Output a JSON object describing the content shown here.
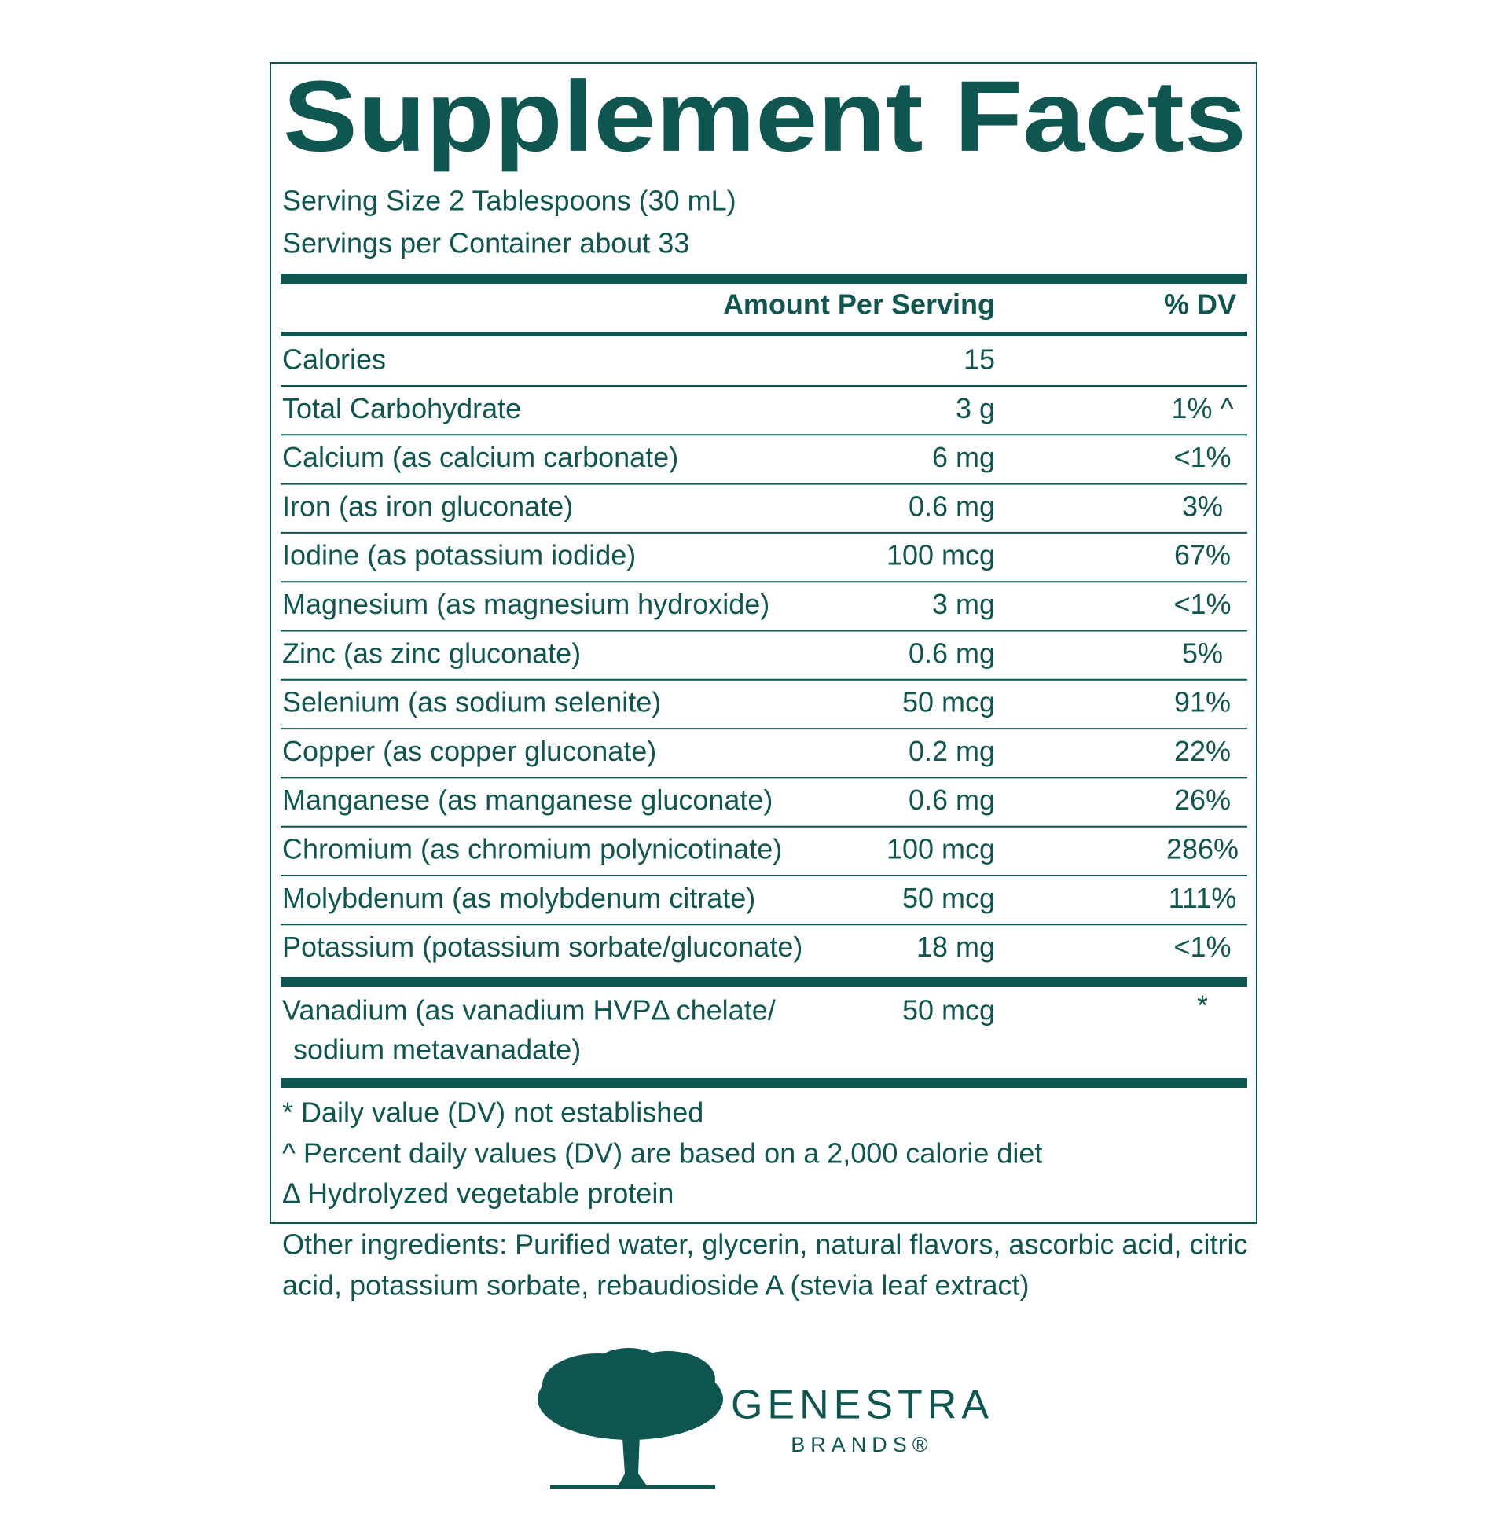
{
  "title": "Supplement Facts",
  "serving": [
    "Serving Size 2 Tablespoons (30 mL)",
    "Servings per Container about 33"
  ],
  "header": {
    "amount": "Amount Per Serving",
    "dv": "% DV"
  },
  "rows": [
    {
      "name": "Calories",
      "amount": "15",
      "dv": null
    },
    {
      "name": "Total Carbohydrate",
      "amount": "3 g",
      "dv": "1% ^"
    },
    {
      "name": "Calcium (as calcium carbonate)",
      "amount": "6 mg",
      "dv": "<1%"
    },
    {
      "name": "Iron (as iron gluconate)",
      "amount": "0.6 mg",
      "dv": "3%"
    },
    {
      "name": "Iodine (as potassium iodide)",
      "amount": "100 mcg",
      "dv": "67%"
    },
    {
      "name": "Magnesium (as magnesium hydroxide)",
      "amount": "3 mg",
      "dv": "<1%"
    },
    {
      "name": "Zinc (as zinc gluconate)",
      "amount": "0.6 mg",
      "dv": "5%"
    },
    {
      "name": "Selenium (as sodium selenite)",
      "amount": "50 mcg",
      "dv": "91%"
    },
    {
      "name": "Copper (as copper gluconate)",
      "amount": "0.2 mg",
      "dv": "22%"
    },
    {
      "name": "Manganese (as manganese gluconate)",
      "amount": "0.6 mg",
      "dv": "26%"
    },
    {
      "name": "Chromium (as chromium polynicotinate)",
      "amount": "100 mcg",
      "dv": "286%"
    },
    {
      "name": "Molybdenum (as molybdenum citrate)",
      "amount": "50 mcg",
      "dv": "111%"
    },
    {
      "name": "Potassium (potassium sorbate/gluconate)",
      "amount": "18 mg",
      "dv": "<1%"
    }
  ],
  "other_row": {
    "name_lines": [
      "Vanadium (as vanadium HVPΔ chelate/",
      "sodium metavanadate)"
    ],
    "amount": "50 mcg",
    "dv": "*"
  },
  "footnotes": [
    "* Daily value (DV) not established",
    "^ Percent daily values (DV) are based on a 2,000 calorie diet",
    "Δ Hydrolyzed vegetable protein"
  ],
  "other_ingredients": [
    "Other ingredients: Purified water, glycerin, natural flavors, ascorbic acid, citric",
    "acid, potassium sorbate, rebaudioside A (stevia leaf extract)"
  ],
  "brand": {
    "name": "GENESTRA",
    "sub": "BRANDS®"
  }
}
